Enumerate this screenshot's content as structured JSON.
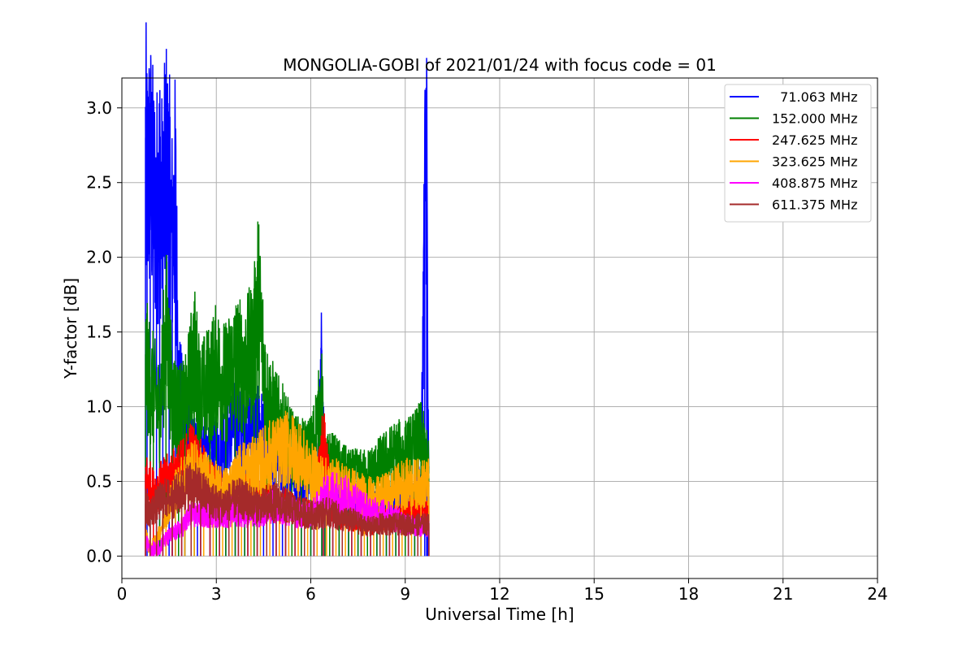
{
  "chart_data": {
    "type": "line",
    "title": "MONGOLIA-GOBI of 2021/01/24 with focus code = 01",
    "xlabel": "Universal Time [h]",
    "ylabel": "Y-factor [dB]",
    "xlim": [
      0,
      24
    ],
    "ylim": [
      -0.15,
      3.2
    ],
    "xticks": [
      0,
      3,
      6,
      9,
      12,
      15,
      18,
      21,
      24
    ],
    "yticks": [
      0.0,
      0.5,
      1.0,
      1.5,
      2.0,
      2.5,
      3.0
    ],
    "xtick_labels": [
      "0",
      "3",
      "6",
      "9",
      "12",
      "15",
      "18",
      "21",
      "24"
    ],
    "ytick_labels": [
      "0.0",
      "0.5",
      "1.0",
      "1.5",
      "2.0",
      "2.5",
      "3.0"
    ],
    "grid": true,
    "legend_position": "top-right",
    "series": [
      {
        "name": "  71.063 MHz",
        "color": "#0000ff",
        "x": [
          0.75,
          0.8,
          0.9,
          1.0,
          1.1,
          1.2,
          1.3,
          1.4,
          1.5,
          1.6,
          1.7,
          1.8,
          2.0,
          2.2,
          2.4,
          2.6,
          2.8,
          3.0,
          3.3,
          3.6,
          3.9,
          4.2,
          4.5,
          4.8,
          5.1,
          5.4,
          5.7,
          6.0,
          6.2,
          6.35,
          6.45,
          6.6,
          6.9,
          7.2,
          7.5,
          7.8,
          8.1,
          8.4,
          8.7,
          9.0,
          9.3,
          9.5,
          9.62,
          9.68,
          9.72,
          9.75
        ],
        "y": [
          2.8,
          2.6,
          2.7,
          2.5,
          2.4,
          2.6,
          2.3,
          2.7,
          2.5,
          2.2,
          2.5,
          1.2,
          0.9,
          0.75,
          0.7,
          0.75,
          0.7,
          0.72,
          0.85,
          0.9,
          0.85,
          0.88,
          0.85,
          0.7,
          0.65,
          0.6,
          0.55,
          0.55,
          0.45,
          1.38,
          0.5,
          0.48,
          0.42,
          0.38,
          0.35,
          0.3,
          0.35,
          0.35,
          0.4,
          0.4,
          0.45,
          0.5,
          2.45,
          3.03,
          1.0,
          0.4
        ]
      },
      {
        "name": "152.000 MHz",
        "color": "#008000",
        "x": [
          0.75,
          0.9,
          1.0,
          1.2,
          1.4,
          1.6,
          1.8,
          2.0,
          2.3,
          2.5,
          2.8,
          3.0,
          3.3,
          3.6,
          3.9,
          4.2,
          4.3,
          4.6,
          4.9,
          5.2,
          5.4,
          5.7,
          6.0,
          6.35,
          6.45,
          6.6,
          6.9,
          7.2,
          7.5,
          7.8,
          8.1,
          8.4,
          8.7,
          9.0,
          9.3,
          9.5,
          9.75
        ],
        "y": [
          1.35,
          1.2,
          1.15,
          1.0,
          1.6,
          1.1,
          1.0,
          1.0,
          1.4,
          1.1,
          1.2,
          1.3,
          1.2,
          1.35,
          1.3,
          1.45,
          1.85,
          1.1,
          0.95,
          0.85,
          0.75,
          0.7,
          0.72,
          1.05,
          0.6,
          0.65,
          0.6,
          0.55,
          0.55,
          0.55,
          0.6,
          0.65,
          0.7,
          0.7,
          0.75,
          0.8,
          0.6
        ]
      },
      {
        "name": "247.625 MHz",
        "color": "#ff0000",
        "x": [
          0.75,
          1.0,
          1.3,
          1.6,
          1.9,
          2.2,
          2.5,
          2.8,
          3.1,
          3.4,
          3.7,
          4.0,
          4.3,
          4.6,
          4.9,
          5.2,
          5.5,
          5.8,
          6.1,
          6.4,
          6.7,
          7.0,
          7.3,
          7.6,
          7.9,
          8.2,
          8.5,
          8.8,
          9.1,
          9.4,
          9.75
        ],
        "y": [
          0.55,
          0.45,
          0.5,
          0.55,
          0.6,
          0.7,
          0.6,
          0.5,
          0.45,
          0.4,
          0.45,
          0.42,
          0.4,
          0.38,
          0.35,
          0.35,
          0.32,
          0.3,
          0.28,
          0.8,
          0.3,
          0.28,
          0.25,
          0.25,
          0.22,
          0.25,
          0.25,
          0.28,
          0.3,
          0.3,
          0.3
        ]
      },
      {
        "name": "323.625 MHz",
        "color": "#ffa500",
        "x": [
          0.75,
          0.9,
          1.1,
          1.4,
          1.7,
          2.0,
          2.3,
          2.6,
          2.9,
          3.2,
          3.5,
          3.8,
          4.1,
          4.4,
          4.7,
          5.0,
          5.3,
          5.6,
          5.9,
          6.2,
          6.5,
          6.8,
          7.1,
          7.4,
          7.7,
          8.0,
          8.3,
          8.6,
          8.9,
          9.2,
          9.5,
          9.75
        ],
        "y": [
          0.15,
          0.05,
          0.1,
          0.3,
          0.45,
          0.55,
          0.6,
          0.55,
          0.5,
          0.45,
          0.5,
          0.6,
          0.6,
          0.65,
          0.7,
          0.72,
          0.75,
          0.7,
          0.6,
          0.55,
          0.5,
          0.5,
          0.48,
          0.45,
          0.42,
          0.4,
          0.42,
          0.45,
          0.5,
          0.5,
          0.5,
          0.5
        ]
      },
      {
        "name": "408.875 MHz",
        "color": "#ff00ff",
        "x": [
          0.75,
          0.9,
          1.1,
          1.3,
          1.6,
          1.9,
          2.2,
          2.5,
          2.8,
          3.1,
          3.4,
          3.7,
          4.0,
          4.3,
          4.6,
          4.9,
          5.2,
          5.5,
          5.8,
          6.1,
          6.4,
          6.7,
          7.0,
          7.3,
          7.6,
          7.9,
          8.2,
          8.5,
          8.8,
          9.1,
          9.4,
          9.75
        ],
        "y": [
          0.1,
          0.05,
          0.05,
          0.1,
          0.15,
          0.2,
          0.28,
          0.3,
          0.3,
          0.3,
          0.3,
          0.32,
          0.3,
          0.3,
          0.32,
          0.35,
          0.3,
          0.3,
          0.28,
          0.3,
          0.4,
          0.45,
          0.42,
          0.4,
          0.35,
          0.3,
          0.3,
          0.28,
          0.25,
          0.22,
          0.2,
          0.2
        ]
      },
      {
        "name": "611.375 MHz",
        "color": "#a52a2a",
        "x": [
          0.75,
          0.9,
          1.1,
          1.3,
          1.6,
          1.9,
          2.2,
          2.5,
          2.8,
          3.1,
          3.4,
          3.7,
          4.0,
          4.3,
          4.6,
          4.9,
          5.2,
          5.5,
          5.8,
          6.1,
          6.4,
          6.7,
          7.0,
          7.3,
          7.6,
          7.9,
          8.2,
          8.5,
          8.8,
          9.1,
          9.4,
          9.75
        ],
        "y": [
          0.35,
          0.3,
          0.35,
          0.4,
          0.4,
          0.45,
          0.5,
          0.45,
          0.4,
          0.35,
          0.38,
          0.4,
          0.38,
          0.35,
          0.35,
          0.38,
          0.35,
          0.32,
          0.3,
          0.28,
          0.3,
          0.3,
          0.25,
          0.25,
          0.22,
          0.2,
          0.22,
          0.22,
          0.22,
          0.22,
          0.22,
          0.22
        ]
      }
    ]
  }
}
